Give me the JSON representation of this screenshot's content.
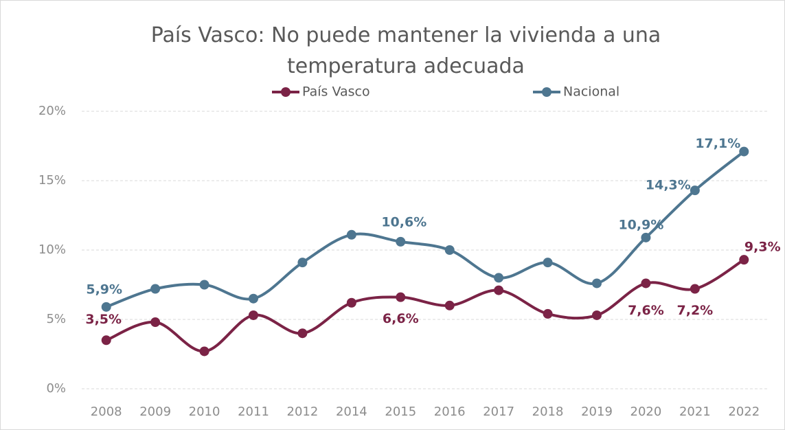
{
  "chart_data": {
    "type": "line",
    "title": "País Vasco: No puede mantener la vivienda a una temperatura adecuada",
    "categories": [
      "2008",
      "2009",
      "2010",
      "2011",
      "2012",
      "2014",
      "2015",
      "2016",
      "2017",
      "2018",
      "2019",
      "2020",
      "2021",
      "2022"
    ],
    "series": [
      {
        "name": "País Vasco",
        "color": "#7b2346",
        "values": [
          3.5,
          4.8,
          2.7,
          5.3,
          4.0,
          6.2,
          6.6,
          6.0,
          7.1,
          5.4,
          5.3,
          7.6,
          7.2,
          9.3
        ],
        "value_labels": [
          "3,5%",
          null,
          null,
          null,
          null,
          null,
          "6,6%",
          null,
          null,
          null,
          null,
          "7,6%",
          "7,2%",
          "9,3%"
        ]
      },
      {
        "name": "Nacional",
        "color": "#4e7690",
        "values": [
          5.9,
          7.2,
          7.5,
          6.5,
          9.1,
          11.1,
          10.6,
          10.0,
          8.0,
          9.1,
          7.6,
          10.9,
          14.3,
          17.1
        ],
        "value_labels": [
          "5,9%",
          null,
          null,
          null,
          null,
          null,
          "10,6%",
          null,
          null,
          null,
          null,
          "10,9%",
          "14,3%",
          "17,1%"
        ]
      }
    ],
    "ylim": [
      0,
      20
    ],
    "yticks": [
      {
        "value": 0,
        "label": "0%"
      },
      {
        "value": 5,
        "label": "5%"
      },
      {
        "value": 10,
        "label": "10%"
      },
      {
        "value": 15,
        "label": "15%"
      },
      {
        "value": 20,
        "label": "20%"
      }
    ],
    "grid": true,
    "legend": "top"
  }
}
